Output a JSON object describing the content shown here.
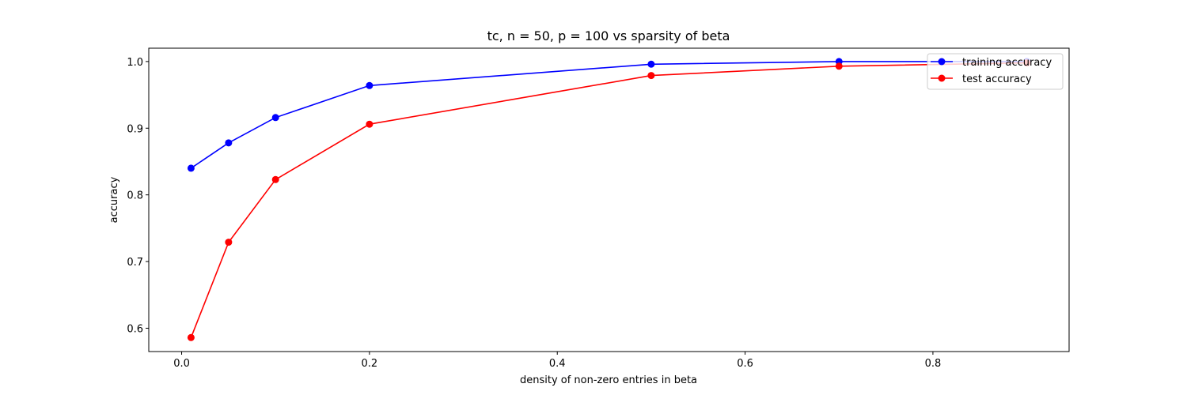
{
  "chart_data": {
    "type": "line",
    "title": "tc, n = 50, p = 100 vs sparsity of beta",
    "xlabel": "density of non-zero entries in beta",
    "ylabel": "accuracy",
    "x": [
      0.01,
      0.05,
      0.1,
      0.2,
      0.5,
      0.7,
      0.9
    ],
    "xlim": [
      -0.035,
      0.945
    ],
    "ylim": [
      0.565,
      1.02
    ],
    "xticks": [
      0.0,
      0.2,
      0.4,
      0.6,
      0.8
    ],
    "xtick_labels": [
      "0.0",
      "0.2",
      "0.4",
      "0.6",
      "0.8"
    ],
    "yticks": [
      0.6,
      0.7,
      0.8,
      0.9,
      1.0
    ],
    "ytick_labels": [
      "0.6",
      "0.7",
      "0.8",
      "0.9",
      "1.0"
    ],
    "grid": false,
    "legend_position": "top-right",
    "series": [
      {
        "name": "training accuracy",
        "color": "#0000ff",
        "marker": "circle",
        "values": [
          0.84,
          0.878,
          0.916,
          0.964,
          0.996,
          1.0,
          1.0
        ]
      },
      {
        "name": "test accuracy",
        "color": "#ff0000",
        "marker": "circle",
        "values": [
          0.586,
          0.729,
          0.823,
          0.906,
          0.979,
          0.993,
          0.998
        ]
      }
    ]
  }
}
